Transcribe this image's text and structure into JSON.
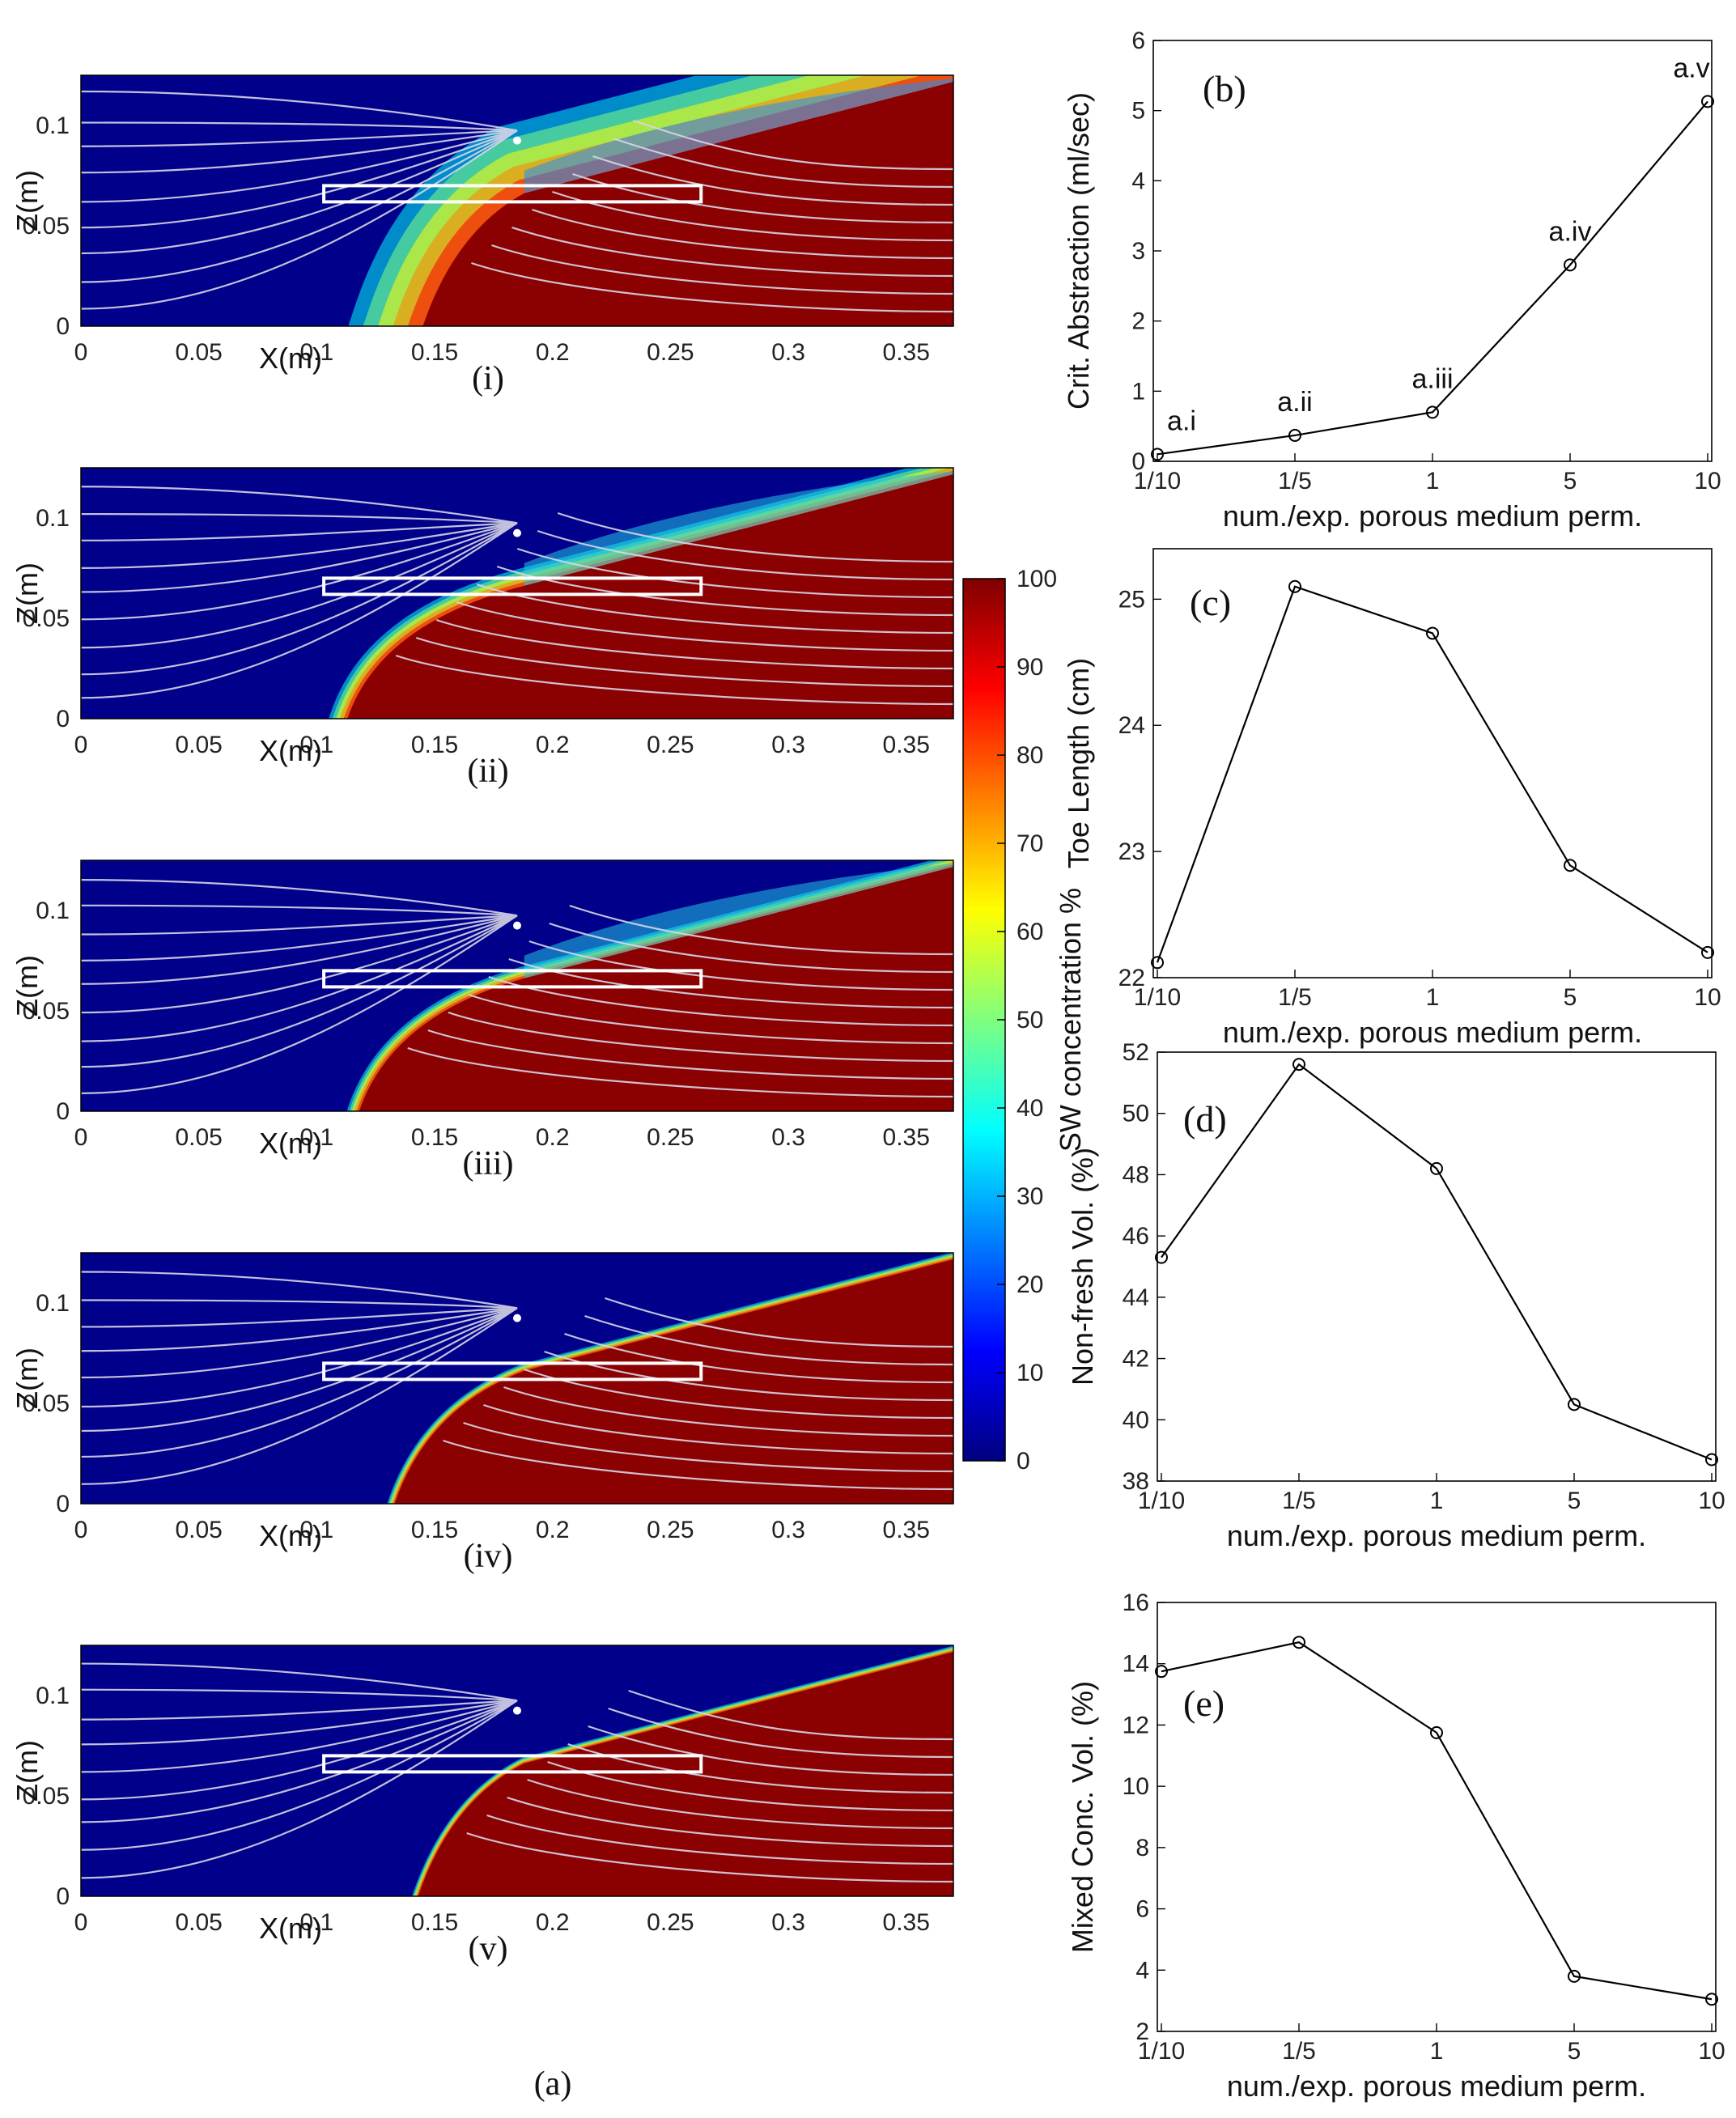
{
  "figure_caption": "(a)",
  "colorbar": {
    "label": "SW concentration %",
    "ticks": [
      "0",
      "10",
      "20",
      "30",
      "40",
      "50",
      "60",
      "70",
      "80",
      "90",
      "100"
    ],
    "colors": [
      "#00007f",
      "#0000ff",
      "#007fff",
      "#00ffff",
      "#7fff7f",
      "#ffff00",
      "#ff7f00",
      "#ff0000",
      "#7f0000"
    ]
  },
  "colors": {
    "fresh": "#00008b",
    "saline": "#8b0000",
    "streamline": "#d6d6e6",
    "well": "#ffffff",
    "line": "#000000"
  },
  "chart_data": [
    {
      "type": "heatmap",
      "panels": [
        {
          "caption": "(i)",
          "toe_x_m": 0.145,
          "wedge_width_m": 0.06
        },
        {
          "caption": "(ii)",
          "toe_x_m": 0.113,
          "wedge_width_m": 0.015
        },
        {
          "caption": "(iii)",
          "toe_x_m": 0.118,
          "wedge_width_m": 0.01
        },
        {
          "caption": "(iv)",
          "toe_x_m": 0.133,
          "wedge_width_m": 0.006
        },
        {
          "caption": "(v)",
          "toe_x_m": 0.143,
          "wedge_width_m": 0.005
        }
      ],
      "xlabel": "X(m)",
      "ylabel": "Z(m)",
      "xlim": [
        0,
        0.37
      ],
      "ylim": [
        0,
        0.125
      ],
      "xticks": [
        "0",
        "0.05",
        "0.1",
        "0.15",
        "0.2",
        "0.25",
        "0.3",
        "0.35"
      ],
      "yticks": [
        "0",
        "0.05",
        "0.1"
      ]
    },
    {
      "type": "line",
      "panel": "(b)",
      "categories": [
        "1/10",
        "1/5",
        "1",
        "5",
        "10"
      ],
      "values": [
        0.1,
        0.37,
        0.7,
        2.8,
        5.13
      ],
      "point_labels": [
        "a.i",
        "a.ii",
        "a.iii",
        "a.iv",
        "a.v"
      ],
      "xlabel": "num./exp. porous medium perm.",
      "ylabel": "Crit. Abstraction (ml/sec)",
      "ylim": [
        0,
        6
      ],
      "yticks": [
        "0",
        "1",
        "2",
        "3",
        "4",
        "5",
        "6"
      ]
    },
    {
      "type": "line",
      "panel": "(c)",
      "categories": [
        "1/10",
        "1/5",
        "1",
        "5",
        "10"
      ],
      "values": [
        22.12,
        25.1,
        24.73,
        22.89,
        22.2
      ],
      "xlabel": "num./exp. porous medium perm.",
      "ylabel": "Toe Length (cm)",
      "ylim": [
        22,
        25.4
      ],
      "yticks": [
        "22",
        "23",
        "24",
        "25"
      ]
    },
    {
      "type": "line",
      "panel": "(d)",
      "categories": [
        "1/10",
        "1/5",
        "1",
        "5",
        "10"
      ],
      "values": [
        45.3,
        51.6,
        48.2,
        40.5,
        38.7
      ],
      "xlabel": "num./exp. porous medium perm.",
      "ylabel": "Non-fresh Vol. (%)",
      "ylim": [
        38,
        52
      ],
      "yticks": [
        "38",
        "40",
        "42",
        "44",
        "46",
        "48",
        "50",
        "52"
      ]
    },
    {
      "type": "line",
      "panel": "(e)",
      "categories": [
        "1/10",
        "1/5",
        "1",
        "5",
        "10"
      ],
      "values": [
        13.75,
        14.7,
        11.75,
        3.8,
        3.05
      ],
      "xlabel": "num./exp. porous medium perm.",
      "ylabel": "Mixed Conc. Vol. (%)",
      "ylim": [
        2,
        16
      ],
      "yticks": [
        "2",
        "4",
        "6",
        "8",
        "10",
        "12",
        "14",
        "16"
      ]
    }
  ]
}
